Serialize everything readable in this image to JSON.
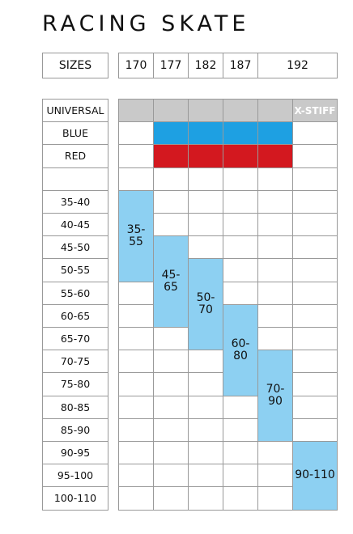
{
  "title": "RACING SKATE",
  "sizes_table": {
    "header": "SIZES",
    "sizes": [
      "170",
      "177",
      "182",
      "187",
      "192"
    ]
  },
  "flex_rows": [
    "UNIVERSAL",
    "BLUE",
    "RED"
  ],
  "universal_note": "X-STIFF",
  "weight_rows": [
    "35-40",
    "40-45",
    "45-50",
    "50-55",
    "55-60",
    "60-65",
    "65-70",
    "70-75",
    "75-80",
    "80-85",
    "85-90",
    "90-95",
    "95-100",
    "100-110"
  ],
  "weight_blocks": [
    "35-55",
    "45-65",
    "50-70",
    "60-80",
    "70-90",
    "90-110"
  ]
}
